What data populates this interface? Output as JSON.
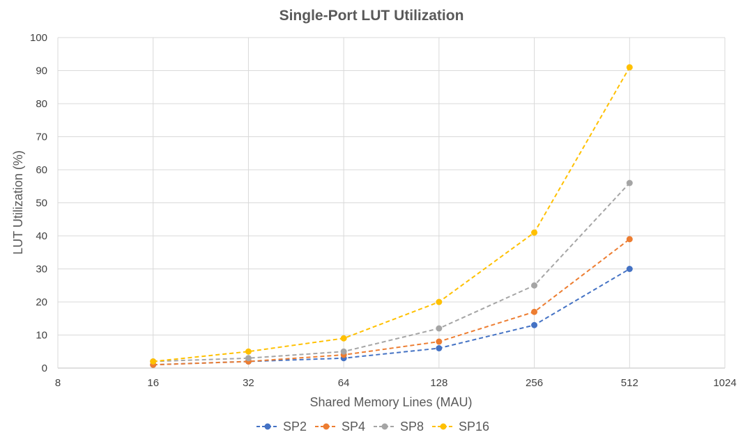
{
  "chart_data": {
    "type": "line",
    "title": "Single-Port LUT Utilization",
    "xlabel": "Shared Memory Lines (MAU)",
    "ylabel": "LUT Utilization (%)",
    "x_scale": "log2",
    "x_ticks": [
      "8",
      "16",
      "32",
      "64",
      "128",
      "256",
      "512",
      "1024"
    ],
    "x_tick_values": [
      8,
      16,
      32,
      64,
      128,
      256,
      512,
      1024
    ],
    "xlim": [
      8,
      1024
    ],
    "y_ticks": [
      "0",
      "10",
      "20",
      "30",
      "40",
      "50",
      "60",
      "70",
      "80",
      "90",
      "100"
    ],
    "ylim": [
      0,
      100
    ],
    "grid": true,
    "legend_position": "bottom",
    "line_style": "dashed",
    "x": [
      16,
      32,
      64,
      128,
      256,
      512
    ],
    "series": [
      {
        "name": "SP2",
        "color": "#4472C4",
        "values": [
          1,
          2,
          3,
          6,
          13,
          30
        ]
      },
      {
        "name": "SP4",
        "color": "#ED7D31",
        "values": [
          1,
          2,
          4,
          8,
          17,
          39
        ]
      },
      {
        "name": "SP8",
        "color": "#A5A5A5",
        "values": [
          2,
          3,
          5,
          12,
          25,
          56
        ]
      },
      {
        "name": "SP16",
        "color": "#FFC000",
        "values": [
          2,
          5,
          9,
          20,
          41,
          91
        ]
      }
    ]
  }
}
